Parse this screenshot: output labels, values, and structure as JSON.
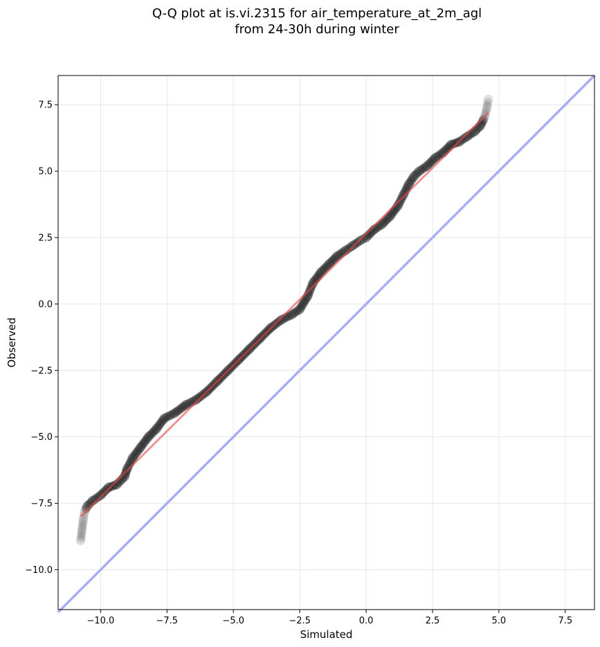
{
  "chart_data": {
    "type": "scatter",
    "title_lines": [
      "Q-Q plot at is.vi.2315 for air_temperature_at_2m_agl",
      "from 24-30h during winter"
    ],
    "xlabel": "Simulated",
    "ylabel": "Observed",
    "xlim": [
      -11.6,
      8.6
    ],
    "ylim": [
      -11.5,
      8.6
    ],
    "xticks": [
      -10.0,
      -7.5,
      -5.0,
      -2.5,
      0.0,
      2.5,
      5.0,
      7.5
    ],
    "yticks": [
      -10.0,
      -7.5,
      -5.0,
      -2.5,
      0.0,
      2.5,
      5.0,
      7.5
    ],
    "xtick_labels": [
      "−10.0",
      "−7.5",
      "−5.0",
      "−2.5",
      "0.0",
      "2.5",
      "5.0",
      "7.5"
    ],
    "ytick_labels": [
      "−10.0",
      "−7.5",
      "−5.0",
      "−2.5",
      "0.0",
      "2.5",
      "5.0",
      "7.5"
    ],
    "grid": true,
    "quantile_points": {
      "x": [
        -10.75,
        -10.7,
        -10.65,
        -10.6,
        -10.5,
        -10.3,
        -10.0,
        -9.7,
        -9.4,
        -9.1,
        -9.0,
        -8.8,
        -8.5,
        -8.2,
        -7.9,
        -7.6,
        -7.2,
        -6.8,
        -6.4,
        -6.0,
        -5.6,
        -5.2,
        -4.8,
        -4.4,
        -4.0,
        -3.6,
        -3.2,
        -2.8,
        -2.5,
        -2.2,
        -2.0,
        -1.7,
        -1.4,
        -1.1,
        -0.8,
        -0.5,
        -0.2,
        0.0,
        0.3,
        0.6,
        0.9,
        1.2,
        1.4,
        1.6,
        1.8,
        2.0,
        2.3,
        2.6,
        2.9,
        3.2,
        3.5,
        3.8,
        4.1,
        4.3,
        4.45,
        4.55,
        4.6
      ],
      "y": [
        -8.9,
        -8.5,
        -8.1,
        -7.8,
        -7.6,
        -7.4,
        -7.2,
        -6.9,
        -6.8,
        -6.5,
        -6.2,
        -5.8,
        -5.4,
        -5.0,
        -4.7,
        -4.3,
        -4.1,
        -3.8,
        -3.6,
        -3.3,
        -2.9,
        -2.5,
        -2.1,
        -1.7,
        -1.3,
        -0.9,
        -0.6,
        -0.4,
        -0.2,
        0.3,
        0.8,
        1.2,
        1.5,
        1.8,
        2.0,
        2.2,
        2.4,
        2.5,
        2.8,
        3.0,
        3.3,
        3.7,
        4.1,
        4.5,
        4.8,
        5.0,
        5.2,
        5.5,
        5.7,
        6.0,
        6.1,
        6.3,
        6.5,
        6.7,
        7.0,
        7.4,
        7.7
      ]
    },
    "fit_line": {
      "x": [
        -10.75,
        4.6
      ],
      "y": [
        -8.0,
        7.2
      ],
      "color": "#e8494a"
    },
    "reference_line": {
      "x": [
        -11.6,
        8.6
      ],
      "y": [
        -11.6,
        8.6
      ],
      "color": "#a8acf5"
    },
    "marker_color": "#1a1a1a"
  }
}
